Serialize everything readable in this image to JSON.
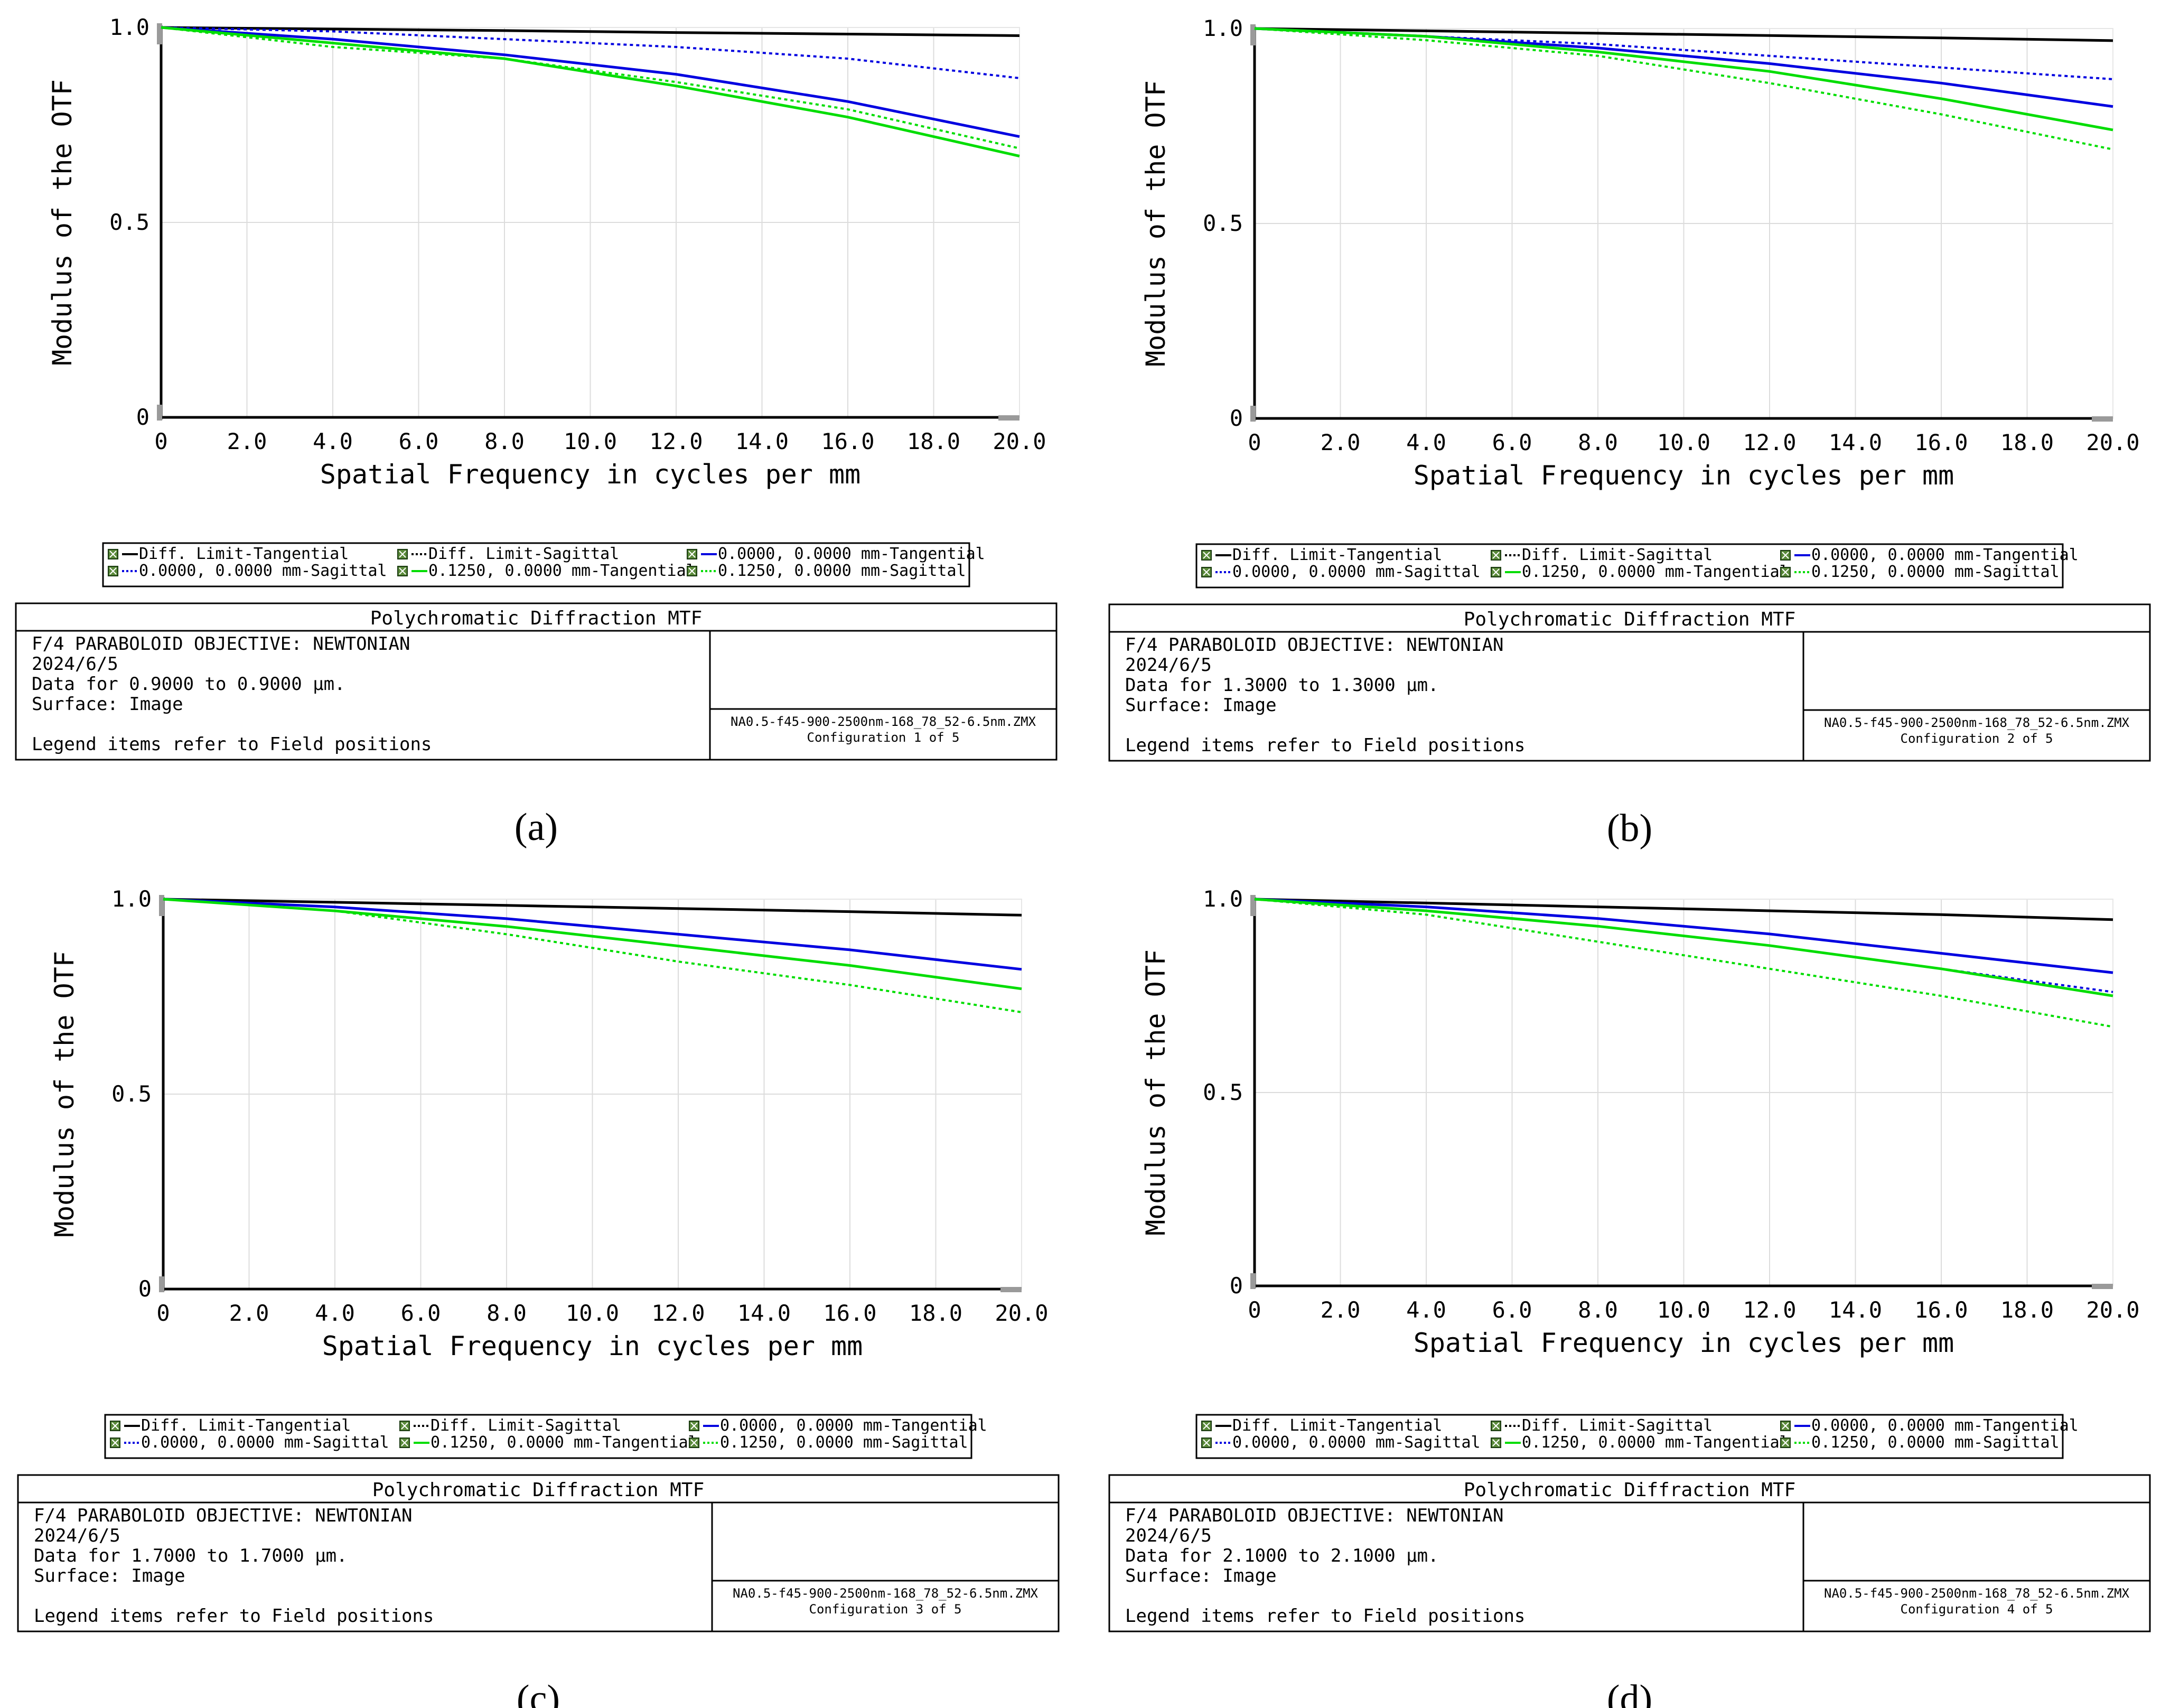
{
  "legend_entries": [
    {
      "label": "Diff. Limit-Tangential",
      "color": "#000000",
      "dash": "solid"
    },
    {
      "label": "Diff. Limit-Sagittal",
      "color": "#000000",
      "dash": "dotted"
    },
    {
      "label": "0.0000, 0.0000 mm-Tangential",
      "color": "#0000e0",
      "dash": "solid"
    },
    {
      "label": "0.0000, 0.0000 mm-Sagittal",
      "color": "#0000e0",
      "dash": "dotted"
    },
    {
      "label": "0.1250, 0.0000 mm-Tangential",
      "color": "#00dd00",
      "dash": "solid"
    },
    {
      "label": "0.1250, 0.0000 mm-Sagittal",
      "color": "#00dd00",
      "dash": "dotted"
    }
  ],
  "chart_data": [
    {
      "type": "line",
      "panel_label": "(a)",
      "title": "Polychromatic Diffraction MTF",
      "xlabel": "Spatial Frequency in cycles per mm",
      "ylabel": "Modulus of the OTF",
      "xlim": [
        0,
        20
      ],
      "ylim": [
        0,
        1
      ],
      "x_ticks": [
        "0",
        "2.0",
        "4.0",
        "6.0",
        "8.0",
        "10.0",
        "12.0",
        "14.0",
        "16.0",
        "18.0",
        "20.0"
      ],
      "y_ticks": [
        "0",
        "0.5",
        "1.0"
      ],
      "info": {
        "objective": "F/4 PARABOLOID OBJECTIVE: NEWTONIAN",
        "date": "2024/6/5",
        "data_range": "Data for 0.9000 to 0.9000 µm.",
        "surface": "Surface: Image",
        "legend_note": "Legend items refer to Field positions",
        "file": "NA0.5-f45-900-2500nm-168_78_52-6.5nm.ZMX",
        "configuration": "Configuration 1 of 5"
      },
      "series": [
        {
          "name": "Diff. Limit-Tangential",
          "x": [
            0,
            4,
            8,
            12,
            16,
            20
          ],
          "values": [
            1.0,
            0.996,
            0.992,
            0.987,
            0.983,
            0.979
          ]
        },
        {
          "name": "Diff. Limit-Sagittal",
          "x": [
            0,
            4,
            8,
            12,
            16,
            20
          ],
          "values": [
            1.0,
            0.996,
            0.992,
            0.987,
            0.983,
            0.979
          ]
        },
        {
          "name": "0.0000, 0.0000 mm-Tangential",
          "x": [
            0,
            4,
            8,
            12,
            16,
            20
          ],
          "values": [
            1.0,
            0.97,
            0.93,
            0.88,
            0.81,
            0.72
          ]
        },
        {
          "name": "0.0000, 0.0000 mm-Sagittal",
          "x": [
            0,
            4,
            8,
            12,
            16,
            20
          ],
          "values": [
            1.0,
            0.99,
            0.97,
            0.95,
            0.92,
            0.87
          ]
        },
        {
          "name": "0.1250, 0.0000 mm-Tangential",
          "x": [
            0,
            4,
            8,
            12,
            16,
            20
          ],
          "values": [
            1.0,
            0.96,
            0.92,
            0.85,
            0.77,
            0.67
          ]
        },
        {
          "name": "0.1250, 0.0000 mm-Sagittal",
          "x": [
            0,
            4,
            8,
            12,
            16,
            20
          ],
          "values": [
            1.0,
            0.95,
            0.92,
            0.86,
            0.79,
            0.69
          ]
        }
      ]
    },
    {
      "type": "line",
      "panel_label": "(b)",
      "title": "Polychromatic Diffraction MTF",
      "xlabel": "Spatial Frequency in cycles per mm",
      "ylabel": "Modulus of the OTF",
      "xlim": [
        0,
        20
      ],
      "ylim": [
        0,
        1
      ],
      "x_ticks": [
        "0",
        "2.0",
        "4.0",
        "6.0",
        "8.0",
        "10.0",
        "12.0",
        "14.0",
        "16.0",
        "18.0",
        "20.0"
      ],
      "y_ticks": [
        "0",
        "0.5",
        "1.0"
      ],
      "info": {
        "objective": "F/4 PARABOLOID OBJECTIVE: NEWTONIAN",
        "date": "2024/6/5",
        "data_range": "Data for 1.3000 to 1.3000 µm.",
        "surface": "Surface: Image",
        "legend_note": "Legend items refer to Field positions",
        "file": "NA0.5-f45-900-2500nm-168_78_52-6.5nm.ZMX",
        "configuration": "Configuration 2 of 5"
      },
      "series": [
        {
          "name": "Diff. Limit-Tangential",
          "x": [
            0,
            4,
            8,
            12,
            16,
            20
          ],
          "values": [
            1.0,
            0.994,
            0.988,
            0.982,
            0.976,
            0.969
          ]
        },
        {
          "name": "Diff. Limit-Sagittal",
          "x": [
            0,
            4,
            8,
            12,
            16,
            20
          ],
          "values": [
            1.0,
            0.994,
            0.988,
            0.982,
            0.976,
            0.969
          ]
        },
        {
          "name": "0.0000, 0.0000 mm-Tangential",
          "x": [
            0,
            4,
            8,
            12,
            16,
            20
          ],
          "values": [
            1.0,
            0.98,
            0.95,
            0.91,
            0.86,
            0.8
          ]
        },
        {
          "name": "0.0000, 0.0000 mm-Sagittal",
          "x": [
            0,
            4,
            8,
            12,
            16,
            20
          ],
          "values": [
            1.0,
            0.98,
            0.96,
            0.93,
            0.9,
            0.87
          ]
        },
        {
          "name": "0.1250, 0.0000 mm-Tangential",
          "x": [
            0,
            4,
            8,
            12,
            16,
            20
          ],
          "values": [
            1.0,
            0.98,
            0.94,
            0.89,
            0.82,
            0.74
          ]
        },
        {
          "name": "0.1250, 0.0000 mm-Sagittal",
          "x": [
            0,
            4,
            8,
            12,
            16,
            20
          ],
          "values": [
            1.0,
            0.97,
            0.93,
            0.86,
            0.78,
            0.69
          ]
        }
      ]
    },
    {
      "type": "line",
      "panel_label": "(c)",
      "title": "Polychromatic Diffraction MTF",
      "xlabel": "Spatial Frequency in cycles per mm",
      "ylabel": "Modulus of the OTF",
      "xlim": [
        0,
        20
      ],
      "ylim": [
        0,
        1
      ],
      "x_ticks": [
        "0",
        "2.0",
        "4.0",
        "6.0",
        "8.0",
        "10.0",
        "12.0",
        "14.0",
        "16.0",
        "18.0",
        "20.0"
      ],
      "y_ticks": [
        "0",
        "0.5",
        "1.0"
      ],
      "info": {
        "objective": "F/4 PARABOLOID OBJECTIVE: NEWTONIAN",
        "date": "2024/6/5",
        "data_range": "Data for 1.7000 to 1.7000 µm.",
        "surface": "Surface: Image",
        "legend_note": "Legend items refer to Field positions",
        "file": "NA0.5-f45-900-2500nm-168_78_52-6.5nm.ZMX",
        "configuration": "Configuration 3 of 5"
      },
      "series": [
        {
          "name": "Diff. Limit-Tangential",
          "x": [
            0,
            4,
            8,
            12,
            16,
            20
          ],
          "values": [
            1.0,
            0.992,
            0.984,
            0.976,
            0.968,
            0.959
          ]
        },
        {
          "name": "Diff. Limit-Sagittal",
          "x": [
            0,
            4,
            8,
            12,
            16,
            20
          ],
          "values": [
            1.0,
            0.992,
            0.984,
            0.976,
            0.968,
            0.959
          ]
        },
        {
          "name": "0.0000, 0.0000 mm-Tangential",
          "x": [
            0,
            4,
            8,
            12,
            16,
            20
          ],
          "values": [
            1.0,
            0.98,
            0.95,
            0.91,
            0.87,
            0.82
          ]
        },
        {
          "name": "0.0000, 0.0000 mm-Sagittal",
          "x": [
            0,
            4,
            8,
            12,
            16,
            20
          ],
          "values": [
            1.0,
            0.98,
            0.95,
            0.91,
            0.87,
            0.82
          ]
        },
        {
          "name": "0.1250, 0.0000 mm-Tangential",
          "x": [
            0,
            4,
            8,
            12,
            16,
            20
          ],
          "values": [
            1.0,
            0.97,
            0.93,
            0.88,
            0.83,
            0.77
          ]
        },
        {
          "name": "0.1250, 0.0000 mm-Sagittal",
          "x": [
            0,
            4,
            8,
            12,
            16,
            20
          ],
          "values": [
            1.0,
            0.97,
            0.91,
            0.84,
            0.78,
            0.71
          ]
        }
      ]
    },
    {
      "type": "line",
      "panel_label": "(d)",
      "title": "Polychromatic Diffraction MTF",
      "xlabel": "Spatial Frequency in cycles per mm",
      "ylabel": "Modulus of the OTF",
      "xlim": [
        0,
        20
      ],
      "ylim": [
        0,
        1
      ],
      "x_ticks": [
        "0",
        "2.0",
        "4.0",
        "6.0",
        "8.0",
        "10.0",
        "12.0",
        "14.0",
        "16.0",
        "18.0",
        "20.0"
      ],
      "y_ticks": [
        "0",
        "0.5",
        "1.0"
      ],
      "info": {
        "objective": "F/4 PARABOLOID OBJECTIVE: NEWTONIAN",
        "date": "2024/6/5",
        "data_range": "Data for 2.1000 to 2.1000 µm.",
        "surface": "Surface: Image",
        "legend_note": "Legend items refer to Field positions",
        "file": "NA0.5-f45-900-2500nm-168_78_52-6.5nm.ZMX",
        "configuration": "Configuration 4 of 5"
      },
      "series": [
        {
          "name": "Diff. Limit-Tangential",
          "x": [
            0,
            4,
            8,
            12,
            16,
            20
          ],
          "values": [
            1.0,
            0.99,
            0.98,
            0.97,
            0.96,
            0.947
          ]
        },
        {
          "name": "Diff. Limit-Sagittal",
          "x": [
            0,
            4,
            8,
            12,
            16,
            20
          ],
          "values": [
            1.0,
            0.99,
            0.98,
            0.97,
            0.96,
            0.947
          ]
        },
        {
          "name": "0.0000, 0.0000 mm-Tangential",
          "x": [
            0,
            4,
            8,
            12,
            16,
            20
          ],
          "values": [
            1.0,
            0.98,
            0.95,
            0.91,
            0.86,
            0.81
          ]
        },
        {
          "name": "0.0000, 0.0000 mm-Sagittal",
          "x": [
            0,
            4,
            8,
            12,
            16,
            20
          ],
          "values": [
            1.0,
            0.97,
            0.93,
            0.88,
            0.82,
            0.76
          ]
        },
        {
          "name": "0.1250, 0.0000 mm-Tangential",
          "x": [
            0,
            4,
            8,
            12,
            16,
            20
          ],
          "values": [
            1.0,
            0.97,
            0.93,
            0.88,
            0.82,
            0.75
          ]
        },
        {
          "name": "0.1250, 0.0000 mm-Sagittal",
          "x": [
            0,
            4,
            8,
            12,
            16,
            20
          ],
          "values": [
            1.0,
            0.96,
            0.89,
            0.82,
            0.75,
            0.67
          ]
        }
      ]
    }
  ]
}
